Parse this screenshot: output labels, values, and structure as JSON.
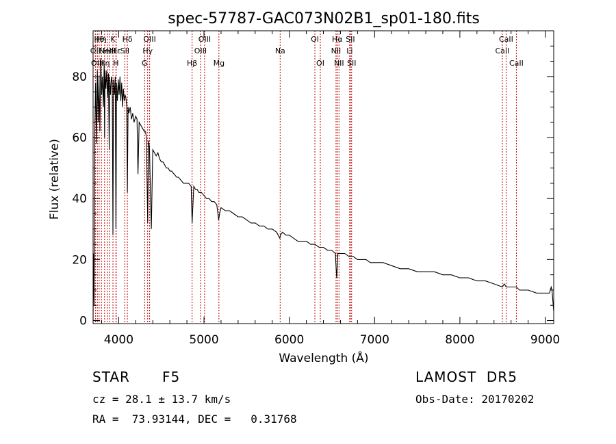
{
  "chart_data": {
    "type": "line",
    "title": "spec-57787-GAC073N02B1_sp01-180.fits",
    "xlabel": "Wavelength (Å)",
    "ylabel": "Flux (relative)",
    "xlim": [
      3700,
      9100
    ],
    "ylim": [
      -1,
      95
    ],
    "xticks": [
      4000,
      5000,
      6000,
      7000,
      8000,
      9000
    ],
    "yticks": [
      0,
      20,
      40,
      60,
      80
    ],
    "grid": false,
    "series": [
      {
        "line_color": "#000000",
        "x": [
          3700,
          3705,
          3712,
          3720,
          3730,
          3740,
          3750,
          3760,
          3770,
          3780,
          3790,
          3800,
          3810,
          3820,
          3830,
          3835,
          3840,
          3850,
          3860,
          3870,
          3880,
          3889,
          3895,
          3905,
          3915,
          3925,
          3933,
          3940,
          3950,
          3960,
          3968,
          3975,
          3985,
          3995,
          4005,
          4015,
          4025,
          4035,
          4045,
          4055,
          4065,
          4075,
          4085,
          4095,
          4102,
          4110,
          4120,
          4135,
          4150,
          4165,
          4180,
          4200,
          4215,
          4226,
          4240,
          4260,
          4280,
          4300,
          4315,
          4325,
          4340,
          4350,
          4360,
          4383,
          4400,
          4420,
          4440,
          4460,
          4480,
          4500,
          4520,
          4540,
          4560,
          4580,
          4600,
          4620,
          4650,
          4680,
          4700,
          4730,
          4760,
          4790,
          4820,
          4850,
          4861,
          4880,
          4900,
          4920,
          4940,
          4970,
          5000,
          5030,
          5060,
          5090,
          5120,
          5150,
          5172,
          5183,
          5200,
          5250,
          5300,
          5350,
          5400,
          5450,
          5500,
          5550,
          5600,
          5650,
          5700,
          5750,
          5800,
          5850,
          5890,
          5896,
          5920,
          5960,
          6000,
          6050,
          6100,
          6150,
          6200,
          6250,
          6300,
          6350,
          6400,
          6450,
          6500,
          6540,
          6556,
          6563,
          6570,
          6600,
          6650,
          6700,
          6750,
          6800,
          6850,
          6900,
          6950,
          7000,
          7100,
          7200,
          7300,
          7400,
          7500,
          7600,
          7700,
          7800,
          7900,
          8000,
          8100,
          8200,
          8300,
          8400,
          8498,
          8520,
          8542,
          8600,
          8662,
          8700,
          8800,
          8900,
          9000,
          9050,
          9060,
          9070,
          9080,
          9100
        ],
        "y": [
          0,
          22,
          5,
          62,
          78,
          58,
          82,
          65,
          80,
          62,
          86,
          74,
          80,
          70,
          84,
          60,
          82,
          76,
          82,
          73,
          81,
          56,
          80,
          74,
          80,
          78,
          28,
          79,
          74,
          80,
          30,
          78,
          72,
          79,
          74,
          80,
          72,
          78,
          70,
          76,
          72,
          74,
          73,
          70,
          42,
          70,
          68,
          70,
          66,
          68,
          65,
          67,
          66,
          48,
          65,
          64,
          63,
          62,
          62,
          60,
          32,
          59,
          57,
          30,
          56,
          55,
          54,
          55,
          53,
          52,
          52,
          51,
          50,
          50,
          49,
          49,
          48,
          47,
          47,
          46,
          45,
          45,
          45,
          44,
          32,
          44,
          43,
          43,
          42,
          42,
          41,
          40,
          40,
          39,
          39,
          38,
          33,
          35,
          37,
          36,
          36,
          35,
          34,
          34,
          33,
          32,
          32,
          31,
          31,
          30,
          30,
          29,
          27,
          28,
          29,
          28,
          28,
          27,
          26,
          26,
          26,
          25,
          25,
          24,
          24,
          23,
          23,
          22,
          14,
          18,
          22,
          22,
          22,
          21,
          21,
          20,
          20,
          20,
          19,
          19,
          19,
          18,
          17,
          17,
          16,
          16,
          16,
          15,
          15,
          14,
          14,
          13,
          13,
          12,
          11,
          12,
          11,
          11,
          11,
          10,
          10,
          9,
          9,
          9,
          10,
          11,
          10,
          3
        ]
      }
    ],
    "lines": [
      {
        "x": 3727,
        "label": "OII",
        "row": 1
      },
      {
        "x": 3750,
        "label": "OIII",
        "row": 2
      },
      {
        "x": 3771,
        "label": "Hθ",
        "row": 0
      },
      {
        "x": 3798,
        "label": "Hη",
        "row": 0
      },
      {
        "x": 3835,
        "label": "Hη",
        "row": 2
      },
      {
        "x": 3869,
        "label": "NeIII",
        "row": 1
      },
      {
        "x": 3889,
        "label": "HeI",
        "row": 1
      },
      {
        "x": 3933,
        "label": "K",
        "row": 0
      },
      {
        "x": 3968,
        "label": "H",
        "row": 2
      },
      {
        "x": 3971,
        "label": "Hε",
        "row": 1
      },
      {
        "x": 4072,
        "label": "SII",
        "row": 1
      },
      {
        "x": 4102,
        "label": "Hδ",
        "row": 0
      },
      {
        "x": 4304,
        "label": "G",
        "row": 2
      },
      {
        "x": 4340,
        "label": "Hγ",
        "row": 1
      },
      {
        "x": 4363,
        "label": "OIII",
        "row": 0
      },
      {
        "x": 4861,
        "label": "Hβ",
        "row": 2
      },
      {
        "x": 4959,
        "label": "OIII",
        "row": 1
      },
      {
        "x": 5007,
        "label": "OIII",
        "row": 0
      },
      {
        "x": 5175,
        "label": "Mg",
        "row": 2
      },
      {
        "x": 5893,
        "label": "Na",
        "row": 1
      },
      {
        "x": 6300,
        "label": "OI",
        "row": 0
      },
      {
        "x": 6364,
        "label": "OI",
        "row": 2
      },
      {
        "x": 6548,
        "label": "NII",
        "row": 1
      },
      {
        "x": 6563,
        "label": "Hα",
        "row": 0
      },
      {
        "x": 6583,
        "label": "NII",
        "row": 2
      },
      {
        "x": 6708,
        "label": "Li",
        "row": 1
      },
      {
        "x": 6716,
        "label": "SII",
        "row": 0
      },
      {
        "x": 6731,
        "label": "SII",
        "row": 2
      },
      {
        "x": 8498,
        "label": "CaII",
        "row": 1
      },
      {
        "x": 8542,
        "label": "CaII",
        "row": 0
      },
      {
        "x": 8662,
        "label": "CaII",
        "row": 2
      }
    ]
  },
  "info": {
    "object_class": "STAR",
    "subclass": "F5",
    "survey": "LAMOST  DR5",
    "redshift": "cz = 28.1 ± 13.7 km/s",
    "obs_date": "Obs-Date: 20170202",
    "coords": "RA =  73.93144, DEC =   0.31768"
  }
}
